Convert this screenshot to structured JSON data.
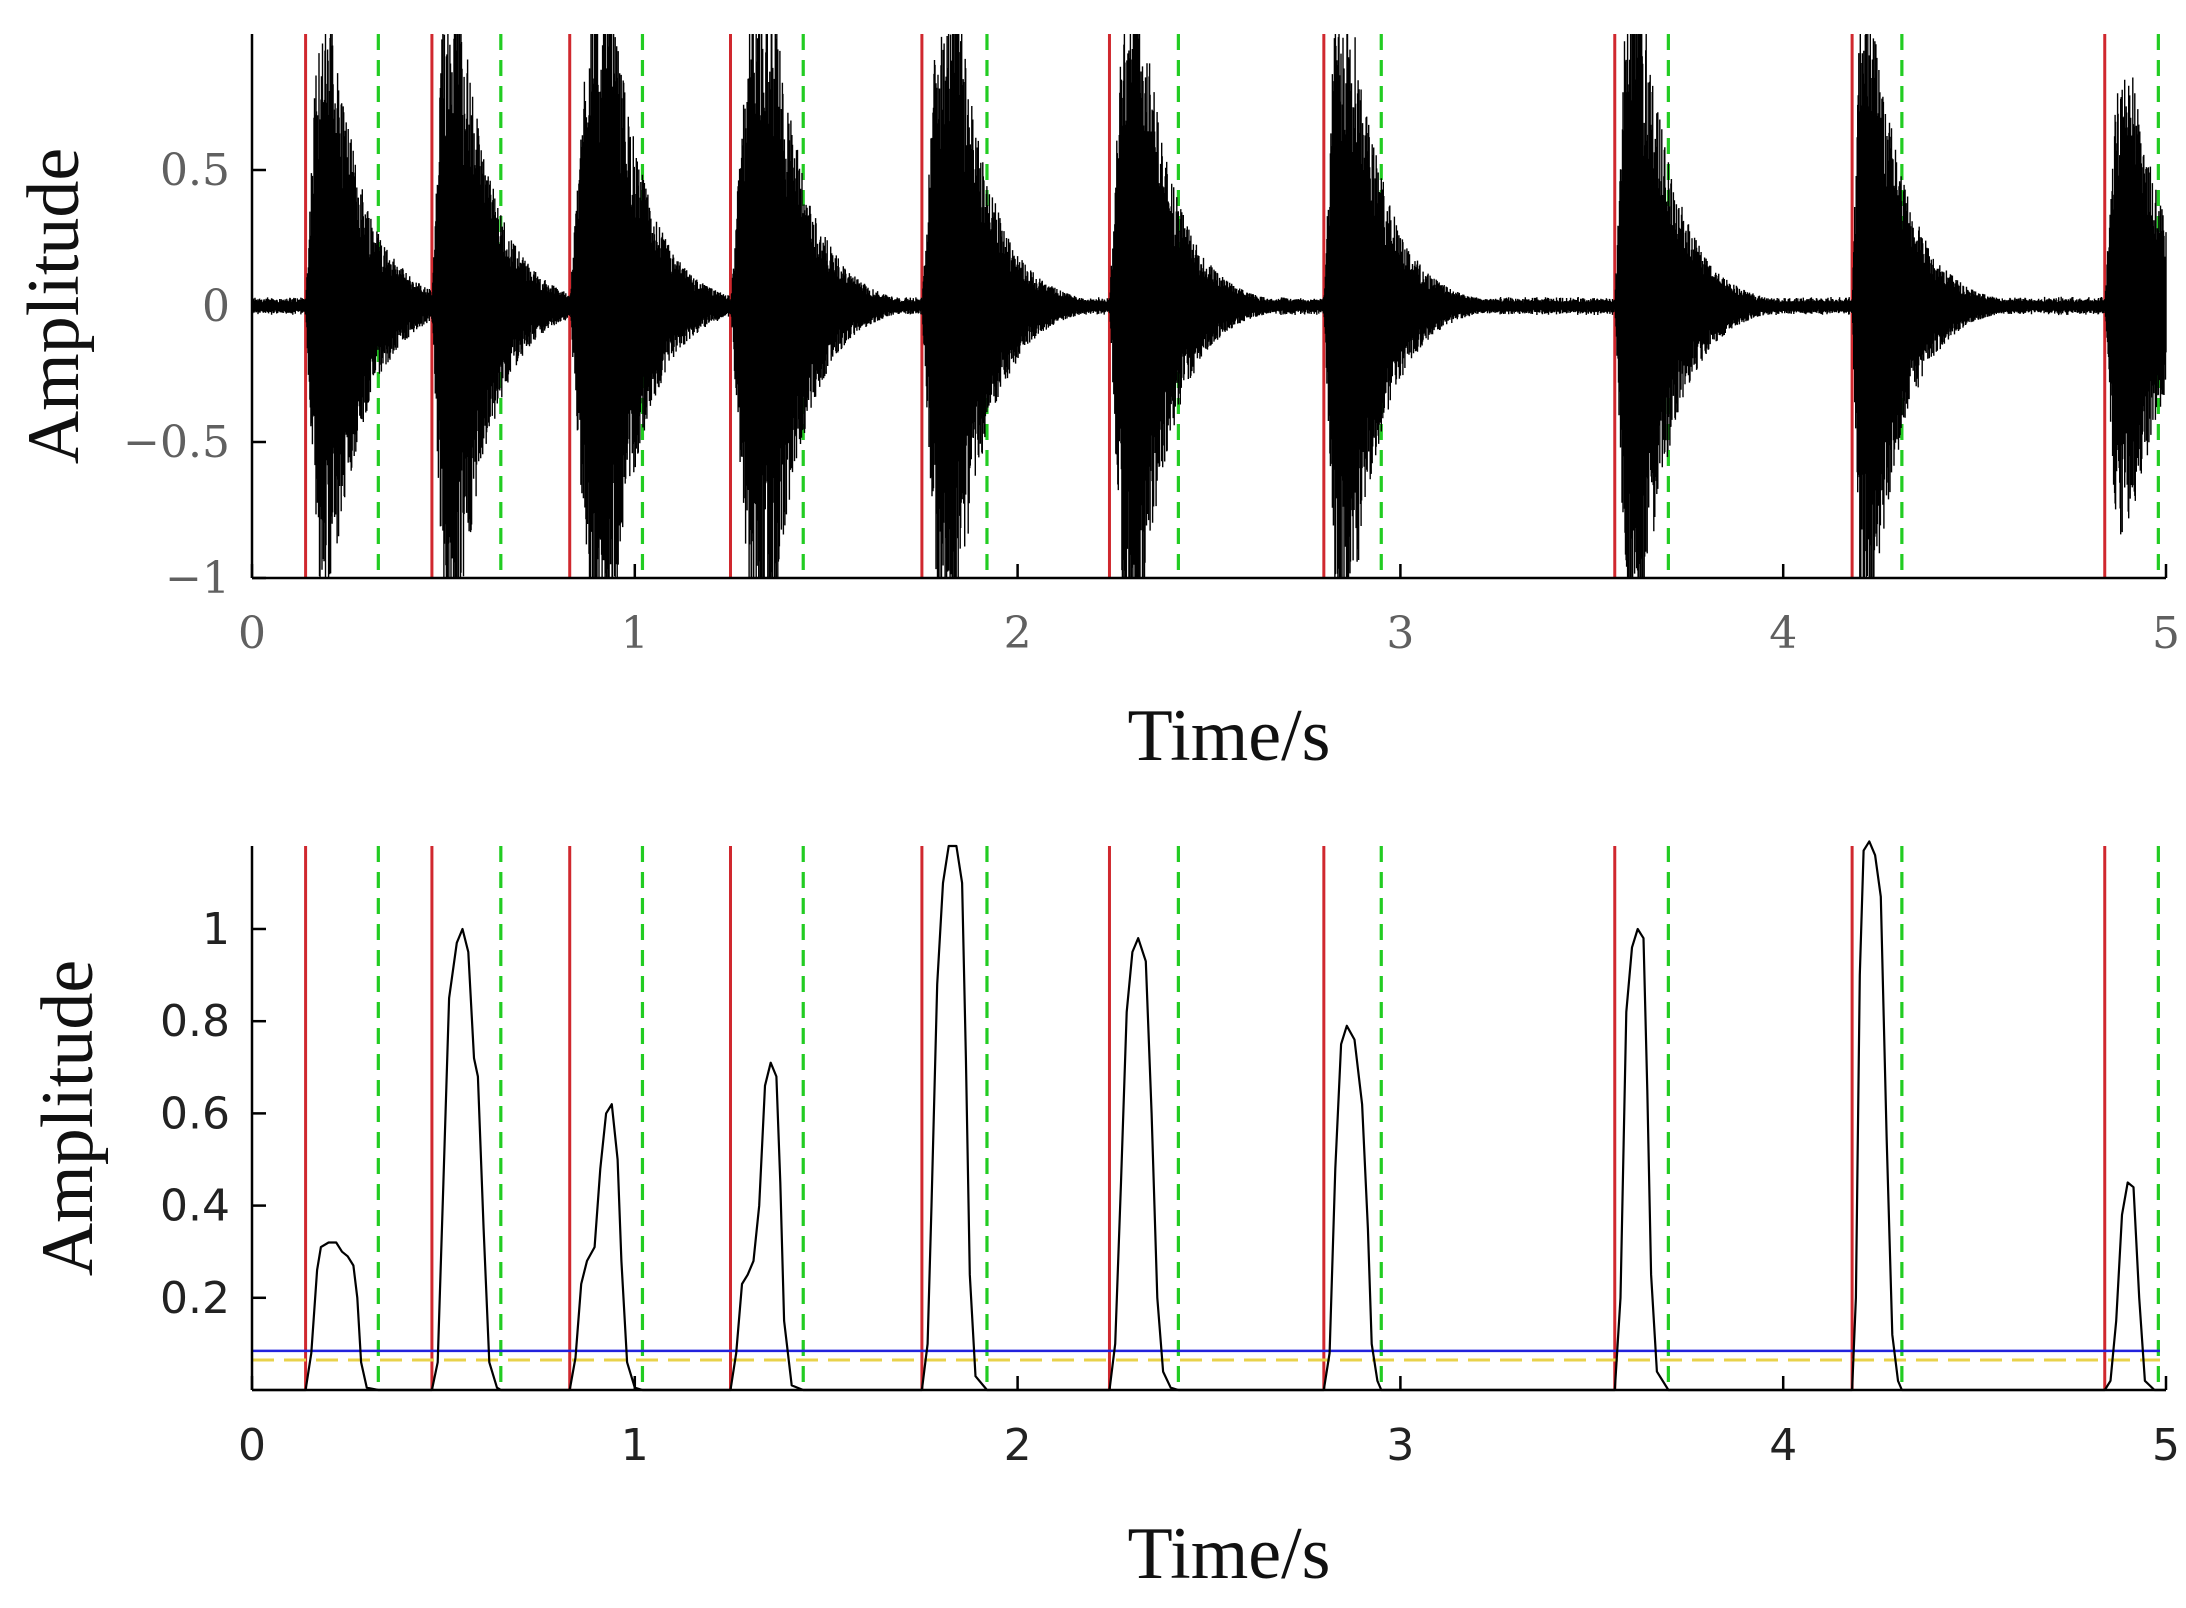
{
  "colors": {
    "signal": "#000000",
    "onset": "#d0282e",
    "offset": "#22cc22",
    "threshold_high": "#2222dd",
    "threshold_low": "#e8d24a",
    "axis": "#000000"
  },
  "chart_data": [
    {
      "type": "line",
      "xlabel": "Time/s",
      "ylabel": "Amplitude",
      "xlim": [
        0,
        5
      ],
      "ylim": [
        -1,
        1
      ],
      "xticks": [
        0,
        1,
        2,
        3,
        4,
        5
      ],
      "xtick_labels": [
        "0",
        "1",
        "2",
        "3",
        "4",
        "5"
      ],
      "yticks": [
        -1,
        -0.5,
        0,
        0.5
      ],
      "ytick_labels": [
        "−1",
        "−0.5",
        "0",
        "0.5"
      ],
      "grid": false,
      "onsets": [
        0.14,
        0.47,
        0.83,
        1.25,
        1.75,
        2.24,
        2.8,
        3.56,
        4.18,
        4.84
      ],
      "offsets": [
        0.33,
        0.65,
        1.02,
        1.44,
        1.92,
        2.42,
        2.95,
        3.7,
        4.31,
        4.98
      ],
      "burst_peaks": [
        0.2,
        0.53,
        0.93,
        1.35,
        1.83,
        2.31,
        2.86,
        3.62,
        4.22,
        4.9
      ],
      "burst_amplitudes": [
        0.9,
        1.0,
        1.0,
        1.0,
        1.0,
        1.0,
        1.0,
        1.0,
        1.0,
        0.75
      ],
      "baseline_noise": 0.03
    },
    {
      "type": "line",
      "xlabel": "Time/s",
      "ylabel": "Amplitude",
      "xlim": [
        0,
        5
      ],
      "ylim": [
        0,
        1.18
      ],
      "xticks": [
        0,
        1,
        2,
        3,
        4,
        5
      ],
      "xtick_labels": [
        "0",
        "1",
        "2",
        "3",
        "4",
        "5"
      ],
      "yticks": [
        0.2,
        0.4,
        0.6,
        0.8,
        1
      ],
      "ytick_labels": [
        "0.2",
        "0.4",
        "0.6",
        "0.8",
        "1"
      ],
      "grid": false,
      "onsets": [
        0.14,
        0.47,
        0.83,
        1.25,
        1.75,
        2.24,
        2.8,
        3.56,
        4.18,
        4.84
      ],
      "offsets": [
        0.33,
        0.65,
        1.02,
        1.44,
        1.92,
        2.42,
        2.95,
        3.7,
        4.31,
        4.98
      ],
      "threshold_high": 0.085,
      "threshold_low": 0.065,
      "envelope": [
        [
          0,
          0
        ],
        [
          0.14,
          0
        ],
        [
          0.155,
          0.08
        ],
        [
          0.17,
          0.26
        ],
        [
          0.18,
          0.31
        ],
        [
          0.2,
          0.32
        ],
        [
          0.22,
          0.32
        ],
        [
          0.235,
          0.3
        ],
        [
          0.25,
          0.29
        ],
        [
          0.265,
          0.27
        ],
        [
          0.275,
          0.2
        ],
        [
          0.285,
          0.06
        ],
        [
          0.3,
          0.005
        ],
        [
          0.33,
          0
        ],
        [
          0.47,
          0
        ],
        [
          0.485,
          0.06
        ],
        [
          0.5,
          0.45
        ],
        [
          0.515,
          0.85
        ],
        [
          0.535,
          0.97
        ],
        [
          0.55,
          1.0
        ],
        [
          0.565,
          0.95
        ],
        [
          0.58,
          0.72
        ],
        [
          0.59,
          0.68
        ],
        [
          0.605,
          0.35
        ],
        [
          0.62,
          0.06
        ],
        [
          0.64,
          0.005
        ],
        [
          0.65,
          0
        ],
        [
          0.83,
          0
        ],
        [
          0.845,
          0.07
        ],
        [
          0.86,
          0.23
        ],
        [
          0.875,
          0.28
        ],
        [
          0.895,
          0.31
        ],
        [
          0.91,
          0.48
        ],
        [
          0.925,
          0.6
        ],
        [
          0.94,
          0.62
        ],
        [
          0.955,
          0.5
        ],
        [
          0.965,
          0.28
        ],
        [
          0.98,
          0.06
        ],
        [
          1.0,
          0.005
        ],
        [
          1.02,
          0
        ],
        [
          1.25,
          0
        ],
        [
          1.265,
          0.08
        ],
        [
          1.28,
          0.23
        ],
        [
          1.295,
          0.25
        ],
        [
          1.31,
          0.28
        ],
        [
          1.325,
          0.4
        ],
        [
          1.34,
          0.66
        ],
        [
          1.355,
          0.71
        ],
        [
          1.37,
          0.68
        ],
        [
          1.38,
          0.45
        ],
        [
          1.39,
          0.15
        ],
        [
          1.41,
          0.01
        ],
        [
          1.44,
          0
        ],
        [
          1.75,
          0
        ],
        [
          1.765,
          0.1
        ],
        [
          1.775,
          0.4
        ],
        [
          1.79,
          0.88
        ],
        [
          1.805,
          1.1
        ],
        [
          1.82,
          1.18
        ],
        [
          1.84,
          1.18
        ],
        [
          1.855,
          1.1
        ],
        [
          1.865,
          0.72
        ],
        [
          1.875,
          0.25
        ],
        [
          1.89,
          0.03
        ],
        [
          1.92,
          0
        ],
        [
          2.24,
          0
        ],
        [
          2.255,
          0.1
        ],
        [
          2.27,
          0.45
        ],
        [
          2.285,
          0.82
        ],
        [
          2.3,
          0.95
        ],
        [
          2.315,
          0.98
        ],
        [
          2.335,
          0.93
        ],
        [
          2.35,
          0.6
        ],
        [
          2.365,
          0.2
        ],
        [
          2.38,
          0.04
        ],
        [
          2.4,
          0.005
        ],
        [
          2.42,
          0
        ],
        [
          2.8,
          0
        ],
        [
          2.815,
          0.08
        ],
        [
          2.83,
          0.48
        ],
        [
          2.845,
          0.75
        ],
        [
          2.86,
          0.79
        ],
        [
          2.88,
          0.76
        ],
        [
          2.9,
          0.62
        ],
        [
          2.915,
          0.35
        ],
        [
          2.925,
          0.1
        ],
        [
          2.94,
          0.02
        ],
        [
          2.95,
          0
        ],
        [
          3.56,
          0
        ],
        [
          3.575,
          0.2
        ],
        [
          3.59,
          0.82
        ],
        [
          3.605,
          0.96
        ],
        [
          3.62,
          1.0
        ],
        [
          3.635,
          0.98
        ],
        [
          3.645,
          0.65
        ],
        [
          3.655,
          0.25
        ],
        [
          3.67,
          0.04
        ],
        [
          3.7,
          0
        ],
        [
          4.18,
          0
        ],
        [
          4.19,
          0.2
        ],
        [
          4.2,
          0.9
        ],
        [
          4.21,
          1.17
        ],
        [
          4.225,
          1.19
        ],
        [
          4.24,
          1.16
        ],
        [
          4.255,
          1.07
        ],
        [
          4.27,
          0.55
        ],
        [
          4.285,
          0.12
        ],
        [
          4.3,
          0.02
        ],
        [
          4.31,
          0
        ],
        [
          4.84,
          0
        ],
        [
          4.855,
          0.02
        ],
        [
          4.87,
          0.15
        ],
        [
          4.885,
          0.38
        ],
        [
          4.9,
          0.45
        ],
        [
          4.915,
          0.44
        ],
        [
          4.93,
          0.2
        ],
        [
          4.945,
          0.02
        ],
        [
          4.97,
          0
        ],
        [
          5.0,
          0
        ]
      ]
    }
  ]
}
